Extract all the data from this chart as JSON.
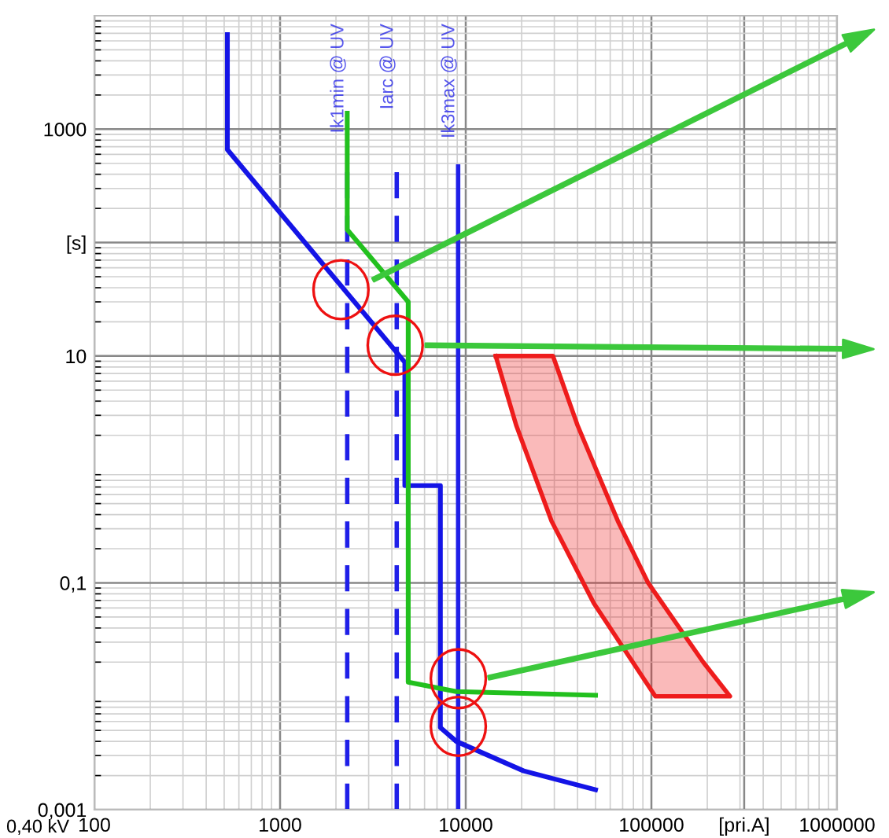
{
  "chart_data": {
    "type": "line",
    "log": "xy",
    "grid": true,
    "legend": false,
    "xlim": [
      100,
      1000000
    ],
    "ylim": [
      0.001,
      10000
    ],
    "xticks": [
      100,
      1000,
      10000,
      100000,
      {
        "value": 316000,
        "label": "[pri.A]"
      },
      1000000
    ],
    "yticks": [
      {
        "value": 0.001,
        "label": "0,001"
      },
      {
        "value": 0.1,
        "label": "0,1"
      },
      10,
      {
        "value": 100,
        "label": "[s]"
      },
      1000
    ],
    "annotations": [
      "0,40 kV"
    ],
    "ref_lines": [
      {
        "axis": "x",
        "value": 2300,
        "label": "Ik1min @ UV",
        "color": "#1f1fe8",
        "line_style": "dashed"
      },
      {
        "axis": "x",
        "value": 4250,
        "label": "Iarc @ UV",
        "color": "#1f1fe8",
        "line_style": "dashed"
      },
      {
        "axis": "x",
        "value": 9100,
        "label": "Ik3max @ UV",
        "color": "#1f1fe8",
        "line_style": "solid"
      }
    ],
    "series": [
      {
        "color": "#1414e6",
        "x": [
          520,
          520,
          4700,
          4700,
          7300,
          7300,
          8900,
          20500,
          50000
        ],
        "values": [
          6800,
          660,
          8.8,
          0.72,
          0.72,
          0.0053,
          0.004,
          0.0022,
          0.0015
        ]
      },
      {
        "color": "#22c01e",
        "x": [
          2300,
          2300,
          4900,
          4900,
          8900,
          50000
        ],
        "values": [
          1380,
          130,
          30,
          0.0133,
          0.011,
          0.0102
        ]
      },
      {
        "type": "area",
        "color": "#ee1c1c",
        "x": [
          14500,
          29500,
          40000,
          66000,
          96000,
          190000,
          265000,
          105000,
          49000,
          29000,
          18700,
          14500
        ],
        "values": [
          10,
          10,
          2.45,
          0.35,
          0.1,
          0.02,
          0.01,
          0.01,
          0.066,
          0.35,
          2.45,
          10
        ]
      }
    ]
  }
}
